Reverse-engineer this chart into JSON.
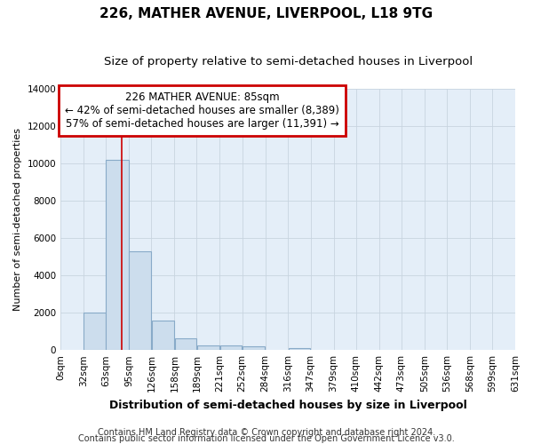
{
  "title": "226, MATHER AVENUE, LIVERPOOL, L18 9TG",
  "subtitle": "Size of property relative to semi-detached houses in Liverpool",
  "xlabel": "Distribution of semi-detached houses by size in Liverpool",
  "ylabel": "Number of semi-detached properties",
  "footnote1": "Contains HM Land Registry data © Crown copyright and database right 2024.",
  "footnote2": "Contains public sector information licensed under the Open Government Licence v3.0.",
  "annotation_title": "226 MATHER AVENUE: 85sqm",
  "annotation_line1": "← 42% of semi-detached houses are smaller (8,389)",
  "annotation_line2": "57% of semi-detached houses are larger (11,391) →",
  "property_size": 85,
  "bar_left_edges": [
    0,
    32,
    63,
    95,
    126,
    158,
    189,
    221,
    252,
    284,
    316,
    347,
    379,
    410,
    442,
    473,
    505,
    536,
    568,
    599
  ],
  "bar_widths": [
    32,
    31,
    32,
    31,
    32,
    31,
    32,
    31,
    32,
    32,
    31,
    32,
    31,
    32,
    31,
    32,
    31,
    32,
    31,
    32
  ],
  "bar_heights": [
    0,
    2000,
    10200,
    5300,
    1600,
    650,
    250,
    230,
    200,
    0,
    100,
    0,
    0,
    0,
    0,
    0,
    0,
    0,
    0,
    0
  ],
  "tick_labels": [
    "0sqm",
    "32sqm",
    "63sqm",
    "95sqm",
    "126sqm",
    "158sqm",
    "189sqm",
    "221sqm",
    "252sqm",
    "284sqm",
    "316sqm",
    "347sqm",
    "379sqm",
    "410sqm",
    "442sqm",
    "473sqm",
    "505sqm",
    "536sqm",
    "568sqm",
    "599sqm",
    "631sqm"
  ],
  "tick_positions": [
    0,
    32,
    63,
    95,
    126,
    158,
    189,
    221,
    252,
    284,
    316,
    347,
    379,
    410,
    442,
    473,
    505,
    536,
    568,
    599,
    631
  ],
  "ylim": [
    0,
    14000
  ],
  "yticks": [
    0,
    2000,
    4000,
    6000,
    8000,
    10000,
    12000,
    14000
  ],
  "bar_color": "#ccdded",
  "bar_edge_color": "#88aac8",
  "grid_color": "#c8d4e0",
  "bg_color": "#e4eef8",
  "vline_color": "#cc0000",
  "annotation_box_color": "#cc0000",
  "title_fontsize": 11,
  "subtitle_fontsize": 9.5,
  "xlabel_fontsize": 9,
  "ylabel_fontsize": 8,
  "tick_fontsize": 7.5,
  "annotation_fontsize": 8.5,
  "footnote_fontsize": 7
}
